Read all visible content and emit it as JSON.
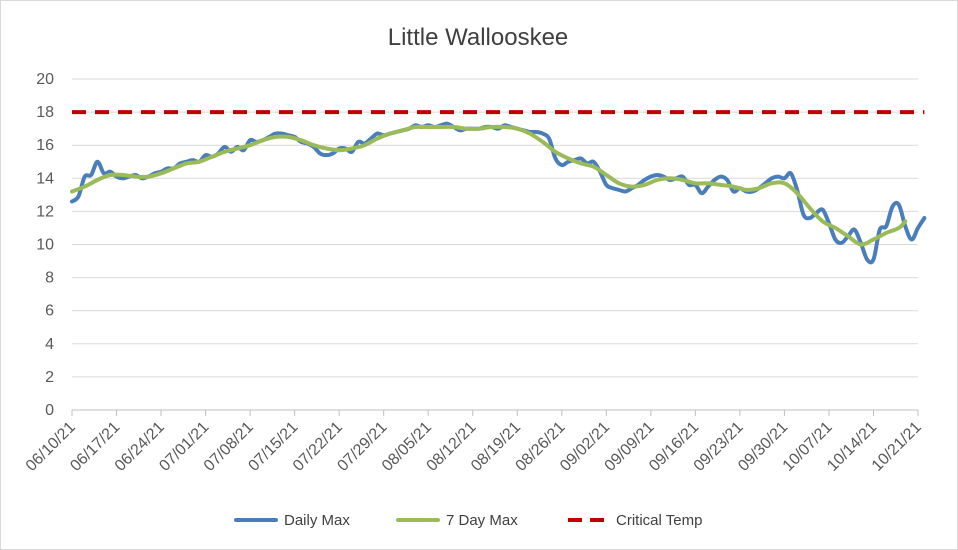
{
  "chart_data": {
    "type": "line",
    "title": "Little Wallooskee",
    "xlabel": "",
    "ylabel": "",
    "ylim": [
      0,
      20
    ],
    "y_ticks": [
      "0",
      "2",
      "4",
      "6",
      "8",
      "10",
      "12",
      "14",
      "16",
      "18",
      "20"
    ],
    "x_ticks": [
      "06/10/21",
      "06/17/21",
      "06/24/21",
      "07/01/21",
      "07/08/21",
      "07/15/21",
      "07/22/21",
      "07/29/21",
      "08/05/21",
      "08/12/21",
      "08/19/21",
      "08/26/21",
      "09/02/21",
      "09/09/21",
      "09/16/21",
      "09/23/21",
      "09/30/21",
      "10/07/21",
      "10/14/21",
      "10/21/21"
    ],
    "x_start": "06/10/21",
    "x_end": "10/21/21",
    "grid": true,
    "legend_position": "bottom",
    "series": [
      {
        "name": "Daily Max",
        "color": "#4a7ebb",
        "style": "solid",
        "points": [
          [
            "06/10/21",
            12.6
          ],
          [
            "06/11/21",
            12.9
          ],
          [
            "06/12/21",
            14.1
          ],
          [
            "06/13/21",
            14.2
          ],
          [
            "06/14/21",
            15.0
          ],
          [
            "06/15/21",
            14.3
          ],
          [
            "06/16/21",
            14.4
          ],
          [
            "06/17/21",
            14.1
          ],
          [
            "06/18/21",
            14.0
          ],
          [
            "06/19/21",
            14.1
          ],
          [
            "06/20/21",
            14.2
          ],
          [
            "06/21/21",
            14.0
          ],
          [
            "06/22/21",
            14.1
          ],
          [
            "06/23/21",
            14.3
          ],
          [
            "06/24/21",
            14.4
          ],
          [
            "06/25/21",
            14.6
          ],
          [
            "06/26/21",
            14.6
          ],
          [
            "06/27/21",
            14.9
          ],
          [
            "06/28/21",
            15.0
          ],
          [
            "06/29/21",
            15.1
          ],
          [
            "06/30/21",
            15.0
          ],
          [
            "07/01/21",
            15.4
          ],
          [
            "07/02/21",
            15.3
          ],
          [
            "07/03/21",
            15.5
          ],
          [
            "07/04/21",
            15.9
          ],
          [
            "07/05/21",
            15.6
          ],
          [
            "07/06/21",
            15.9
          ],
          [
            "07/07/21",
            15.7
          ],
          [
            "07/08/21",
            16.3
          ],
          [
            "07/09/21",
            16.2
          ],
          [
            "07/10/21",
            16.3
          ],
          [
            "07/11/21",
            16.5
          ],
          [
            "07/12/21",
            16.7
          ],
          [
            "07/13/21",
            16.7
          ],
          [
            "07/14/21",
            16.6
          ],
          [
            "07/15/21",
            16.5
          ],
          [
            "07/16/21",
            16.2
          ],
          [
            "07/17/21",
            16.1
          ],
          [
            "07/18/21",
            15.9
          ],
          [
            "07/19/21",
            15.5
          ],
          [
            "07/20/21",
            15.4
          ],
          [
            "07/21/21",
            15.5
          ],
          [
            "07/22/21",
            15.8
          ],
          [
            "07/23/21",
            15.8
          ],
          [
            "07/24/21",
            15.6
          ],
          [
            "07/25/21",
            16.2
          ],
          [
            "07/26/21",
            16.1
          ],
          [
            "07/27/21",
            16.4
          ],
          [
            "07/28/21",
            16.7
          ],
          [
            "07/29/21",
            16.6
          ],
          [
            "07/30/21",
            16.7
          ],
          [
            "07/31/21",
            16.8
          ],
          [
            "08/01/21",
            16.9
          ],
          [
            "08/02/21",
            17.0
          ],
          [
            "08/03/21",
            17.2
          ],
          [
            "08/04/21",
            17.1
          ],
          [
            "08/05/21",
            17.2
          ],
          [
            "08/06/21",
            17.1
          ],
          [
            "08/07/21",
            17.2
          ],
          [
            "08/08/21",
            17.3
          ],
          [
            "08/09/21",
            17.1
          ],
          [
            "08/10/21",
            16.9
          ],
          [
            "08/11/21",
            17.0
          ],
          [
            "08/12/21",
            17.0
          ],
          [
            "08/13/21",
            17.0
          ],
          [
            "08/14/21",
            17.1
          ],
          [
            "08/15/21",
            17.1
          ],
          [
            "08/16/21",
            17.0
          ],
          [
            "08/17/21",
            17.2
          ],
          [
            "08/18/21",
            17.1
          ],
          [
            "08/19/21",
            17.0
          ],
          [
            "08/20/21",
            16.9
          ],
          [
            "08/21/21",
            16.8
          ],
          [
            "08/22/21",
            16.8
          ],
          [
            "08/23/21",
            16.7
          ],
          [
            "08/24/21",
            16.4
          ],
          [
            "08/25/21",
            15.2
          ],
          [
            "08/26/21",
            14.8
          ],
          [
            "08/27/21",
            15.0
          ],
          [
            "08/28/21",
            15.1
          ],
          [
            "08/29/21",
            15.2
          ],
          [
            "08/30/21",
            14.9
          ],
          [
            "08/31/21",
            15.0
          ],
          [
            "09/01/21",
            14.4
          ],
          [
            "09/02/21",
            13.6
          ],
          [
            "09/03/21",
            13.4
          ],
          [
            "09/04/21",
            13.3
          ],
          [
            "09/05/21",
            13.2
          ],
          [
            "09/06/21",
            13.4
          ],
          [
            "09/07/21",
            13.6
          ],
          [
            "09/08/21",
            13.9
          ],
          [
            "09/09/21",
            14.1
          ],
          [
            "09/10/21",
            14.2
          ],
          [
            "09/11/21",
            14.1
          ],
          [
            "09/12/21",
            13.9
          ],
          [
            "09/13/21",
            14.0
          ],
          [
            "09/14/21",
            14.1
          ],
          [
            "09/15/21",
            13.6
          ],
          [
            "09/16/21",
            13.6
          ],
          [
            "09/17/21",
            13.1
          ],
          [
            "09/18/21",
            13.5
          ],
          [
            "09/19/21",
            13.9
          ],
          [
            "09/20/21",
            14.1
          ],
          [
            "09/21/21",
            13.9
          ],
          [
            "09/22/21",
            13.2
          ],
          [
            "09/23/21",
            13.4
          ],
          [
            "09/24/21",
            13.2
          ],
          [
            "09/25/21",
            13.2
          ],
          [
            "09/26/21",
            13.4
          ],
          [
            "09/27/21",
            13.7
          ],
          [
            "09/28/21",
            14.0
          ],
          [
            "09/29/21",
            14.1
          ],
          [
            "09/30/21",
            14.0
          ],
          [
            "10/01/21",
            14.3
          ],
          [
            "10/02/21",
            13.3
          ],
          [
            "10/03/21",
            11.8
          ],
          [
            "10/04/21",
            11.6
          ],
          [
            "10/05/21",
            11.9
          ],
          [
            "10/06/21",
            12.1
          ],
          [
            "10/07/21",
            11.3
          ],
          [
            "10/08/21",
            10.3
          ],
          [
            "10/09/21",
            10.1
          ],
          [
            "10/10/21",
            10.5
          ],
          [
            "10/11/21",
            10.9
          ],
          [
            "10/12/21",
            10.1
          ],
          [
            "10/13/21",
            9.1
          ],
          [
            "10/14/21",
            9.1
          ],
          [
            "10/15/21",
            10.9
          ],
          [
            "10/16/21",
            11.1
          ],
          [
            "10/17/21",
            12.3
          ],
          [
            "10/18/21",
            12.4
          ],
          [
            "10/19/21",
            11.1
          ],
          [
            "10/20/21",
            10.3
          ],
          [
            "10/21/21",
            11.0
          ],
          [
            "10/22/21",
            11.6
          ]
        ]
      },
      {
        "name": "7 Day Max",
        "color": "#9bbb59",
        "style": "solid",
        "points": [
          [
            "06/10/21",
            13.2
          ],
          [
            "06/12/21",
            13.5
          ],
          [
            "06/14/21",
            13.9
          ],
          [
            "06/16/21",
            14.2
          ],
          [
            "06/18/21",
            14.2
          ],
          [
            "06/20/21",
            14.1
          ],
          [
            "06/22/21",
            14.1
          ],
          [
            "06/24/21",
            14.3
          ],
          [
            "06/26/21",
            14.6
          ],
          [
            "06/28/21",
            14.9
          ],
          [
            "06/30/21",
            15.0
          ],
          [
            "07/02/21",
            15.3
          ],
          [
            "07/04/21",
            15.6
          ],
          [
            "07/06/21",
            15.8
          ],
          [
            "07/08/21",
            16.0
          ],
          [
            "07/10/21",
            16.3
          ],
          [
            "07/12/21",
            16.5
          ],
          [
            "07/14/21",
            16.5
          ],
          [
            "07/16/21",
            16.3
          ],
          [
            "07/18/21",
            16.0
          ],
          [
            "07/20/21",
            15.8
          ],
          [
            "07/22/21",
            15.7
          ],
          [
            "07/24/21",
            15.8
          ],
          [
            "07/26/21",
            16.0
          ],
          [
            "07/28/21",
            16.4
          ],
          [
            "07/30/21",
            16.7
          ],
          [
            "08/01/21",
            16.9
          ],
          [
            "08/03/21",
            17.1
          ],
          [
            "08/05/21",
            17.1
          ],
          [
            "08/07/21",
            17.1
          ],
          [
            "08/09/21",
            17.1
          ],
          [
            "08/11/21",
            17.0
          ],
          [
            "08/13/21",
            17.0
          ],
          [
            "08/15/21",
            17.1
          ],
          [
            "08/17/21",
            17.1
          ],
          [
            "08/19/21",
            17.0
          ],
          [
            "08/21/21",
            16.7
          ],
          [
            "08/23/21",
            16.2
          ],
          [
            "08/25/21",
            15.6
          ],
          [
            "08/27/21",
            15.2
          ],
          [
            "08/29/21",
            14.9
          ],
          [
            "08/31/21",
            14.7
          ],
          [
            "09/02/21",
            14.2
          ],
          [
            "09/04/21",
            13.7
          ],
          [
            "09/06/21",
            13.5
          ],
          [
            "09/08/21",
            13.6
          ],
          [
            "09/10/21",
            13.9
          ],
          [
            "09/12/21",
            14.0
          ],
          [
            "09/14/21",
            13.9
          ],
          [
            "09/16/21",
            13.7
          ],
          [
            "09/18/21",
            13.7
          ],
          [
            "09/20/21",
            13.6
          ],
          [
            "09/22/21",
            13.5
          ],
          [
            "09/24/21",
            13.3
          ],
          [
            "09/26/21",
            13.4
          ],
          [
            "09/28/21",
            13.7
          ],
          [
            "09/30/21",
            13.7
          ],
          [
            "10/02/21",
            13.1
          ],
          [
            "10/04/21",
            12.2
          ],
          [
            "10/06/21",
            11.4
          ],
          [
            "10/08/21",
            11.0
          ],
          [
            "10/10/21",
            10.5
          ],
          [
            "10/12/21",
            10.0
          ],
          [
            "10/14/21",
            10.3
          ],
          [
            "10/16/21",
            10.7
          ],
          [
            "10/18/21",
            11.0
          ],
          [
            "10/19/21",
            11.4
          ]
        ]
      },
      {
        "name": "Critical Temp",
        "color": "#c00000",
        "style": "dashed",
        "points": [
          [
            "06/10/21",
            18
          ],
          [
            "10/22/21",
            18
          ]
        ]
      }
    ]
  }
}
